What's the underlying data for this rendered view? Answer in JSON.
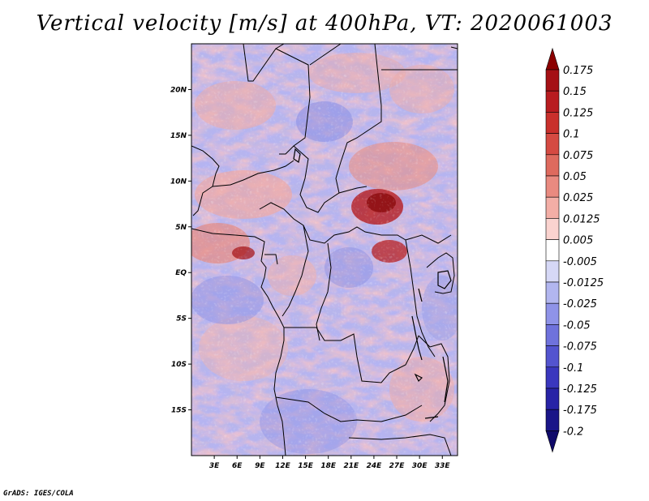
{
  "title": "Vertical velocity [m/s] at 400hPa, VT: 2020061003",
  "credit": "GrADS: IGES/COLA",
  "map": {
    "lat_labels": [
      "20N",
      "15N",
      "10N",
      "5N",
      "EQ",
      "5S",
      "10S",
      "15S"
    ],
    "lat_values": [
      20,
      15,
      10,
      5,
      0,
      -5,
      -10,
      -15
    ],
    "lon_labels": [
      "3E",
      "6E",
      "9E",
      "12E",
      "15E",
      "18E",
      "21E",
      "24E",
      "27E",
      "30E",
      "33E"
    ],
    "lon_values": [
      3,
      6,
      9,
      12,
      15,
      18,
      21,
      24,
      27,
      30,
      33
    ],
    "lon_range": [
      0,
      35
    ],
    "lat_range": [
      -20,
      25
    ]
  },
  "colorbar": {
    "labels": [
      "0.175",
      "0.15",
      "0.125",
      "0.1",
      "0.075",
      "0.05",
      "0.025",
      "0.0125",
      "0.005",
      "-0.005",
      "-0.0125",
      "-0.025",
      "-0.05",
      "-0.075",
      "-0.1",
      "-0.125",
      "-0.175",
      "-0.2"
    ],
    "colors": [
      "#8b0000",
      "#a51015",
      "#b81c20",
      "#c9302c",
      "#d54a42",
      "#de6a5e",
      "#e98a80",
      "#f3aea6",
      "#fad3cf",
      "#ffffff",
      "#d6d8f6",
      "#b2b6ef",
      "#8f93e8",
      "#6f72dc",
      "#5354cf",
      "#3a37be",
      "#2823a6",
      "#1a1588",
      "#100a6a"
    ]
  }
}
